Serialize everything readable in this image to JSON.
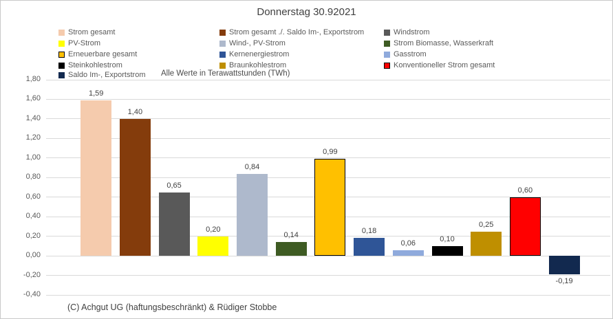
{
  "chart_data": {
    "type": "bar",
    "title": "Donnerstag 30.92021",
    "units_note": "Alle Werte in Terawattstunden (TWh)",
    "copyright": "(C) Achgut UG (haftungsbeschränkt) & Rüdiger Stobbe",
    "xlabel": "",
    "ylabel": "",
    "ylim": [
      -0.4,
      1.8
    ],
    "ytick_step": 0.2,
    "ytick_labels": [
      "1,80",
      "1,60",
      "1,40",
      "1,20",
      "1,00",
      "0,80",
      "0,60",
      "0,40",
      "0,20",
      "0,00",
      "-0,20",
      "-0,40"
    ],
    "grid": true,
    "grid_color": "#d9d9d9",
    "legend_position": "top-left, 3 columns, 5 rows",
    "series": [
      {
        "name": "Strom gesamt",
        "value": 1.59,
        "label": "1,59",
        "color": "#f5cbad",
        "border": false
      },
      {
        "name": "Strom gesamt ./. Saldo Im-, Exportstrom",
        "value": 1.4,
        "label": "1,40",
        "color": "#843c0c",
        "border": false
      },
      {
        "name": "Windstrom",
        "value": 0.65,
        "label": "0,65",
        "color": "#595959",
        "border": false
      },
      {
        "name": "PV-Strom",
        "value": 0.2,
        "label": "0,20",
        "color": "#ffff00",
        "border": false
      },
      {
        "name": "Wind-, PV-Strom",
        "value": 0.84,
        "label": "0,84",
        "color": "#aeb9cc",
        "border": false
      },
      {
        "name": "Strom Biomasse, Wasserkraft",
        "value": 0.14,
        "label": "0,14",
        "color": "#3e5b23",
        "border": false
      },
      {
        "name": "Erneuerbare gesamt",
        "value": 0.99,
        "label": "0,99",
        "color": "#ffc000",
        "border": true
      },
      {
        "name": "Kernenergiestrom",
        "value": 0.18,
        "label": "0,18",
        "color": "#2f5597",
        "border": false
      },
      {
        "name": "Gasstrom",
        "value": 0.06,
        "label": "0,06",
        "color": "#8faadc",
        "border": false
      },
      {
        "name": "Steinkohlestrom",
        "value": 0.1,
        "label": "0,10",
        "color": "#000000",
        "border": false
      },
      {
        "name": "Braunkohlestrom",
        "value": 0.25,
        "label": "0,25",
        "color": "#bf8f00",
        "border": false
      },
      {
        "name": "Konventioneller Strom gesamt",
        "value": 0.6,
        "label": "0,60",
        "color": "#ff0000",
        "border": true
      },
      {
        "name": "Saldo Im-, Exportstrom",
        "value": -0.19,
        "label": "-0,19",
        "color": "#12294f",
        "border": false
      }
    ]
  }
}
